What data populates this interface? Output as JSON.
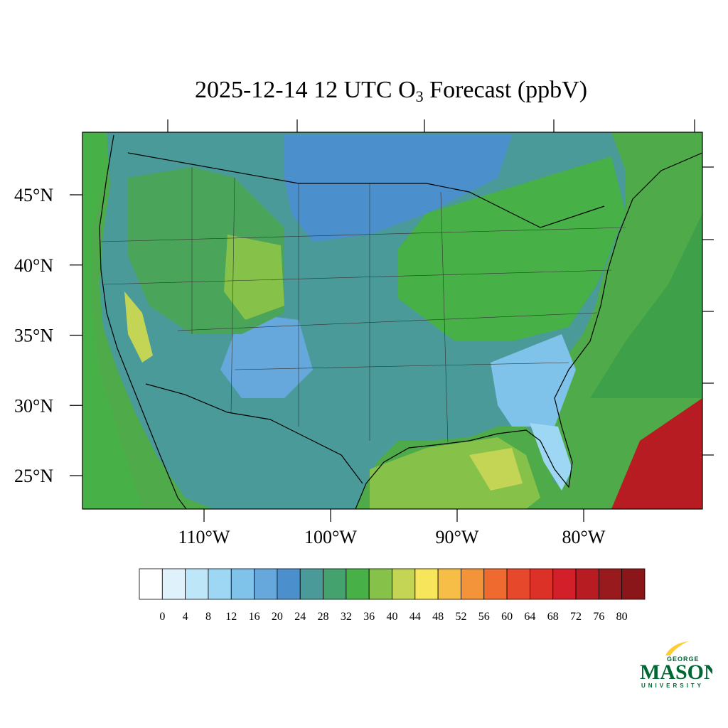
{
  "title": {
    "prefix": "2025-12-14 12 UTC O",
    "subscript": "3",
    "suffix": " Forecast (ppbV)"
  },
  "axes": {
    "lat_labels": [
      "45°N",
      "40°N",
      "35°N",
      "30°N",
      "25°N"
    ],
    "lat_values": [
      45,
      40,
      35,
      30,
      25
    ],
    "lon_labels": [
      "110°W",
      "100°W",
      "90°W",
      "80°W"
    ],
    "lon_values": [
      -110,
      -100,
      -90,
      -80
    ]
  },
  "colorbar": {
    "ticks": [
      "0",
      "4",
      "8",
      "12",
      "16",
      "20",
      "24",
      "28",
      "32",
      "36",
      "40",
      "44",
      "48",
      "52",
      "56",
      "60",
      "64",
      "68",
      "72",
      "76",
      "80"
    ],
    "colors": [
      "#ffffff",
      "#dff1fb",
      "#bde6f8",
      "#9dd7f4",
      "#7fc2ea",
      "#66a8dc",
      "#4b8fcc",
      "#4a9a9a",
      "#44a26e",
      "#47b046",
      "#86c249",
      "#c4d556",
      "#f7e55b",
      "#f7be47",
      "#f4943a",
      "#ef6a2e",
      "#e5482a",
      "#dc3127",
      "#d21f2a",
      "#b71c22",
      "#981a1d",
      "#8a1619"
    ]
  },
  "map_regions": {
    "ocean_color": "#4fab4a",
    "land_base_color": "#4a9a9a",
    "high_plains_color": "#3f86c4",
    "west_color": "#4aa55a"
  },
  "logo": {
    "top": "GEORGE",
    "main": "MASON",
    "bottom": "UNIVERSITY",
    "green": "#006633",
    "gold": "#ffcc33"
  }
}
